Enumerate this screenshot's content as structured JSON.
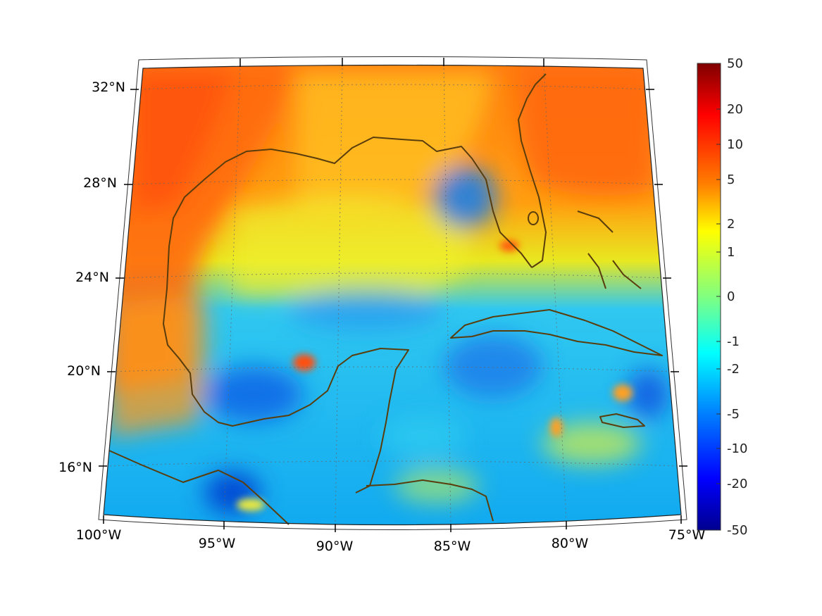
{
  "map": {
    "projection": "conic",
    "extent": {
      "lon": [
        -100,
        -75
      ],
      "lat": [
        14.5,
        33
      ]
    },
    "latitude_ticks": [
      "32°N",
      "28°N",
      "24°N",
      "20°N",
      "16°N"
    ],
    "longitude_ticks": [
      "100°W",
      "95°W",
      "90°W",
      "85°W",
      "80°W",
      "75°W"
    ],
    "coastline_color": "#5a3d0c",
    "gridlines": "dotted"
  },
  "colorbar": {
    "colormap": "jet",
    "scale": "symmetric-log",
    "ticks": [
      "50",
      "20",
      "10",
      "5",
      "2",
      "1",
      "0",
      "-1",
      "-2",
      "-5",
      "-10",
      "-20",
      "-50"
    ],
    "top_color": "#800000",
    "bottom_color": "#00008f"
  }
}
